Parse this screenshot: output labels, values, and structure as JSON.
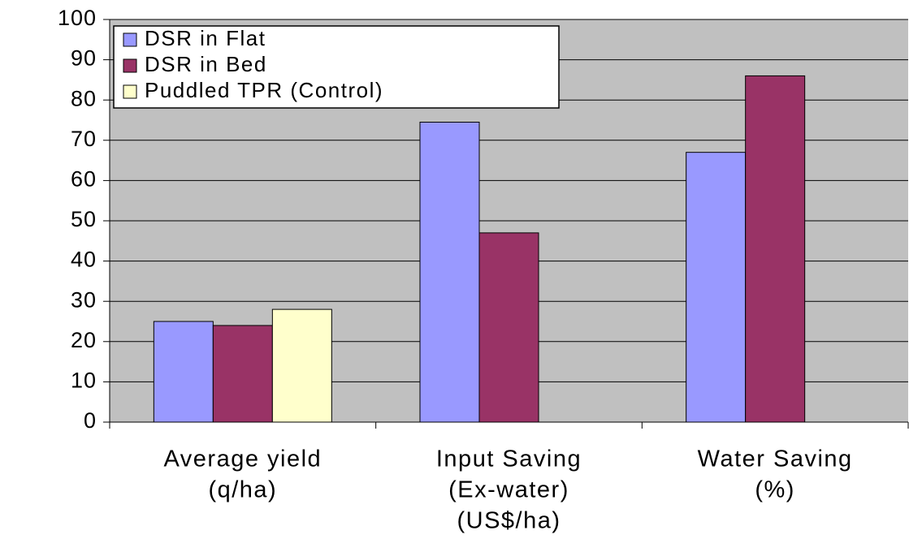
{
  "chart_data": {
    "type": "bar",
    "categories": [
      [
        "Average yield",
        "(q/ha)"
      ],
      [
        "Input Saving",
        "(Ex-water)",
        "(US$/ha)"
      ],
      [
        "Water Saving",
        "(%)"
      ]
    ],
    "series": [
      {
        "name": "DSR in Flat",
        "color": "#9999ff",
        "values": [
          25,
          74.5,
          67
        ]
      },
      {
        "name": "DSR in Bed",
        "color": "#993366",
        "values": [
          24,
          47,
          86
        ]
      },
      {
        "name": "Puddled TPR (Control)",
        "color": "#ffffcc",
        "values": [
          28,
          null,
          null
        ]
      }
    ],
    "ylim": [
      0,
      100
    ],
    "yticks": [
      0,
      10,
      20,
      30,
      40,
      50,
      60,
      70,
      80,
      90,
      100
    ],
    "grid": true,
    "legend": "top-left",
    "plot_background": "#c0c0c0"
  }
}
